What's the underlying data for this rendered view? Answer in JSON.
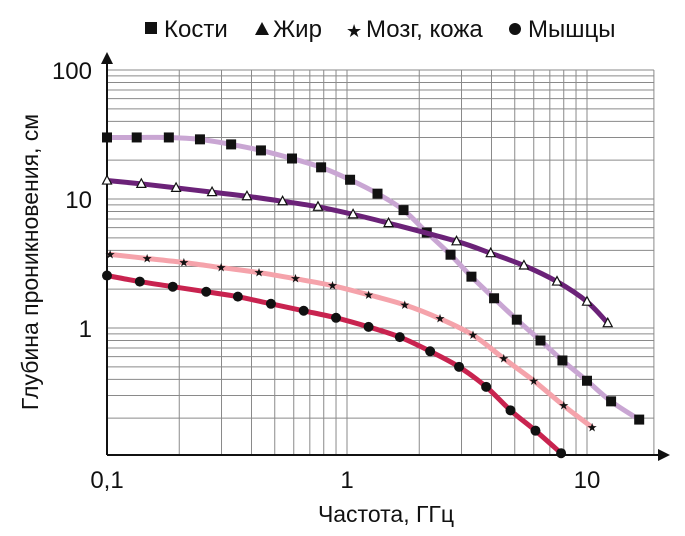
{
  "chart_data": {
    "type": "line",
    "title": "",
    "xlabel": "Частота, ГГц",
    "ylabel": "Глубина проникновения, см",
    "xscale": "log",
    "yscale": "log",
    "xlim": [
      0.1,
      19
    ],
    "ylim": [
      0.1,
      100
    ],
    "x_tick_labels": [
      "0,1",
      "1",
      "10"
    ],
    "x_tick_values": [
      0.1,
      1,
      10
    ],
    "y_tick_labels": [
      "100",
      "10",
      "1"
    ],
    "y_tick_values": [
      100,
      10,
      1
    ],
    "grid": true,
    "legend_position": "top",
    "series": [
      {
        "name": "Кости",
        "marker": "square",
        "color": "#c9a6d3",
        "x": [
          0.1,
          0.133,
          0.181,
          0.244,
          0.329,
          0.438,
          0.59,
          0.78,
          1.03,
          1.34,
          1.72,
          2.15,
          2.7,
          3.3,
          4.1,
          5.1,
          6.4,
          7.9,
          10,
          12.6,
          16.5
        ],
        "y": [
          30,
          30,
          30,
          29,
          26.5,
          23.8,
          20.6,
          17.6,
          14.1,
          11,
          8.2,
          5.5,
          3.7,
          2.5,
          1.7,
          1.16,
          0.8,
          0.56,
          0.39,
          0.27,
          0.195
        ]
      },
      {
        "name": "Жир",
        "marker": "triangle",
        "color": "#6b2278",
        "x": [
          0.1,
          0.139,
          0.194,
          0.274,
          0.383,
          0.539,
          0.757,
          1.06,
          1.49,
          2.86,
          3.97,
          5.46,
          7.5,
          10,
          12.2
        ],
        "y": [
          13.9,
          13.1,
          12.2,
          11.3,
          10.5,
          9.6,
          8.7,
          7.6,
          6.5,
          4.7,
          3.8,
          3.05,
          2.29,
          1.6,
          1.09
        ]
      },
      {
        "name": "Мозг, кожа",
        "marker": "star",
        "color": "#f5a3ab",
        "x": [
          0.103,
          0.147,
          0.209,
          0.299,
          0.43,
          0.61,
          0.87,
          1.23,
          1.74,
          2.44,
          3.35,
          4.5,
          6.0,
          8.0,
          10.5
        ],
        "y": [
          3.72,
          3.46,
          3.22,
          2.94,
          2.69,
          2.41,
          2.13,
          1.81,
          1.51,
          1.18,
          0.88,
          0.58,
          0.39,
          0.25,
          0.17
        ]
      },
      {
        "name": "Мышцы",
        "marker": "circle",
        "color": "#c8234f",
        "x": [
          0.1,
          0.137,
          0.188,
          0.259,
          0.351,
          0.482,
          0.66,
          0.9,
          1.23,
          1.66,
          2.22,
          2.93,
          3.8,
          4.8,
          6.1,
          7.8
        ],
        "y": [
          2.55,
          2.29,
          2.09,
          1.91,
          1.75,
          1.54,
          1.36,
          1.2,
          1.02,
          0.85,
          0.66,
          0.5,
          0.35,
          0.23,
          0.16,
          0.107
        ]
      }
    ]
  }
}
